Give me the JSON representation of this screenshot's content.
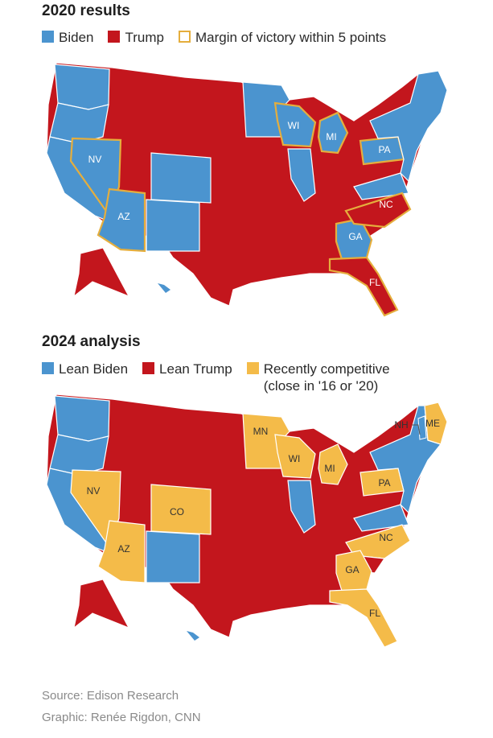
{
  "colors": {
    "biden": "#4b94cf",
    "trump": "#c3161d",
    "competitive": "#f4bb49",
    "margin_outline": "#e5ae3d",
    "background": "#ffffff"
  },
  "map1": {
    "title": "2020 results",
    "legend": {
      "biden": "Biden",
      "trump": "Trump",
      "margin": "Margin of victory within 5 points"
    },
    "labels": [
      "NV",
      "AZ",
      "WI",
      "MI",
      "PA",
      "NC",
      "GA",
      "FL"
    ],
    "states": {
      "blue": [
        "WA",
        "OR",
        "CA",
        "NV",
        "AZ",
        "CO",
        "NM",
        "MN",
        "WI",
        "MI",
        "IL",
        "VA",
        "PA",
        "NY",
        "VT",
        "NH",
        "MA",
        "CT",
        "RI",
        "NJ",
        "DE",
        "MD",
        "ME",
        "GA",
        "HI"
      ],
      "red": [
        "ID",
        "MT",
        "WY",
        "UT",
        "ND",
        "SD",
        "NE",
        "KS",
        "OK",
        "TX",
        "MO",
        "AR",
        "LA",
        "IA",
        "IN",
        "OH",
        "KY",
        "TN",
        "MS",
        "AL",
        "WV",
        "SC",
        "NC",
        "FL",
        "AK"
      ],
      "margin_within_5": [
        "NV",
        "AZ",
        "WI",
        "MI",
        "PA",
        "NC",
        "GA",
        "FL"
      ]
    }
  },
  "map2": {
    "title": "2024 analysis",
    "legend": {
      "lean_biden": "Lean Biden",
      "lean_trump": "Lean Trump",
      "competitive_line1": "Recently competitive",
      "competitive_line2": "(close in '16 or '20)"
    },
    "labels": [
      "MN",
      "WI",
      "MI",
      "NH",
      "ME",
      "PA",
      "NV",
      "CO",
      "AZ",
      "NC",
      "GA",
      "FL"
    ],
    "states": {
      "lean_biden": [
        "WA",
        "OR",
        "CA",
        "NM",
        "IL",
        "VA",
        "NY",
        "VT",
        "MA",
        "CT",
        "RI",
        "NJ",
        "DE",
        "MD",
        "HI"
      ],
      "lean_trump": [
        "ID",
        "MT",
        "WY",
        "UT",
        "ND",
        "SD",
        "NE",
        "KS",
        "OK",
        "TX",
        "MO",
        "AR",
        "LA",
        "IA",
        "IN",
        "OH",
        "KY",
        "TN",
        "MS",
        "AL",
        "WV",
        "SC",
        "AK"
      ],
      "recently_competitive": [
        "NV",
        "AZ",
        "CO",
        "MN",
        "WI",
        "MI",
        "PA",
        "NH",
        "ME",
        "NC",
        "GA",
        "FL"
      ]
    }
  },
  "source": "Source: Edison Research",
  "credit": "Graphic: Renée Rigdon, CNN"
}
